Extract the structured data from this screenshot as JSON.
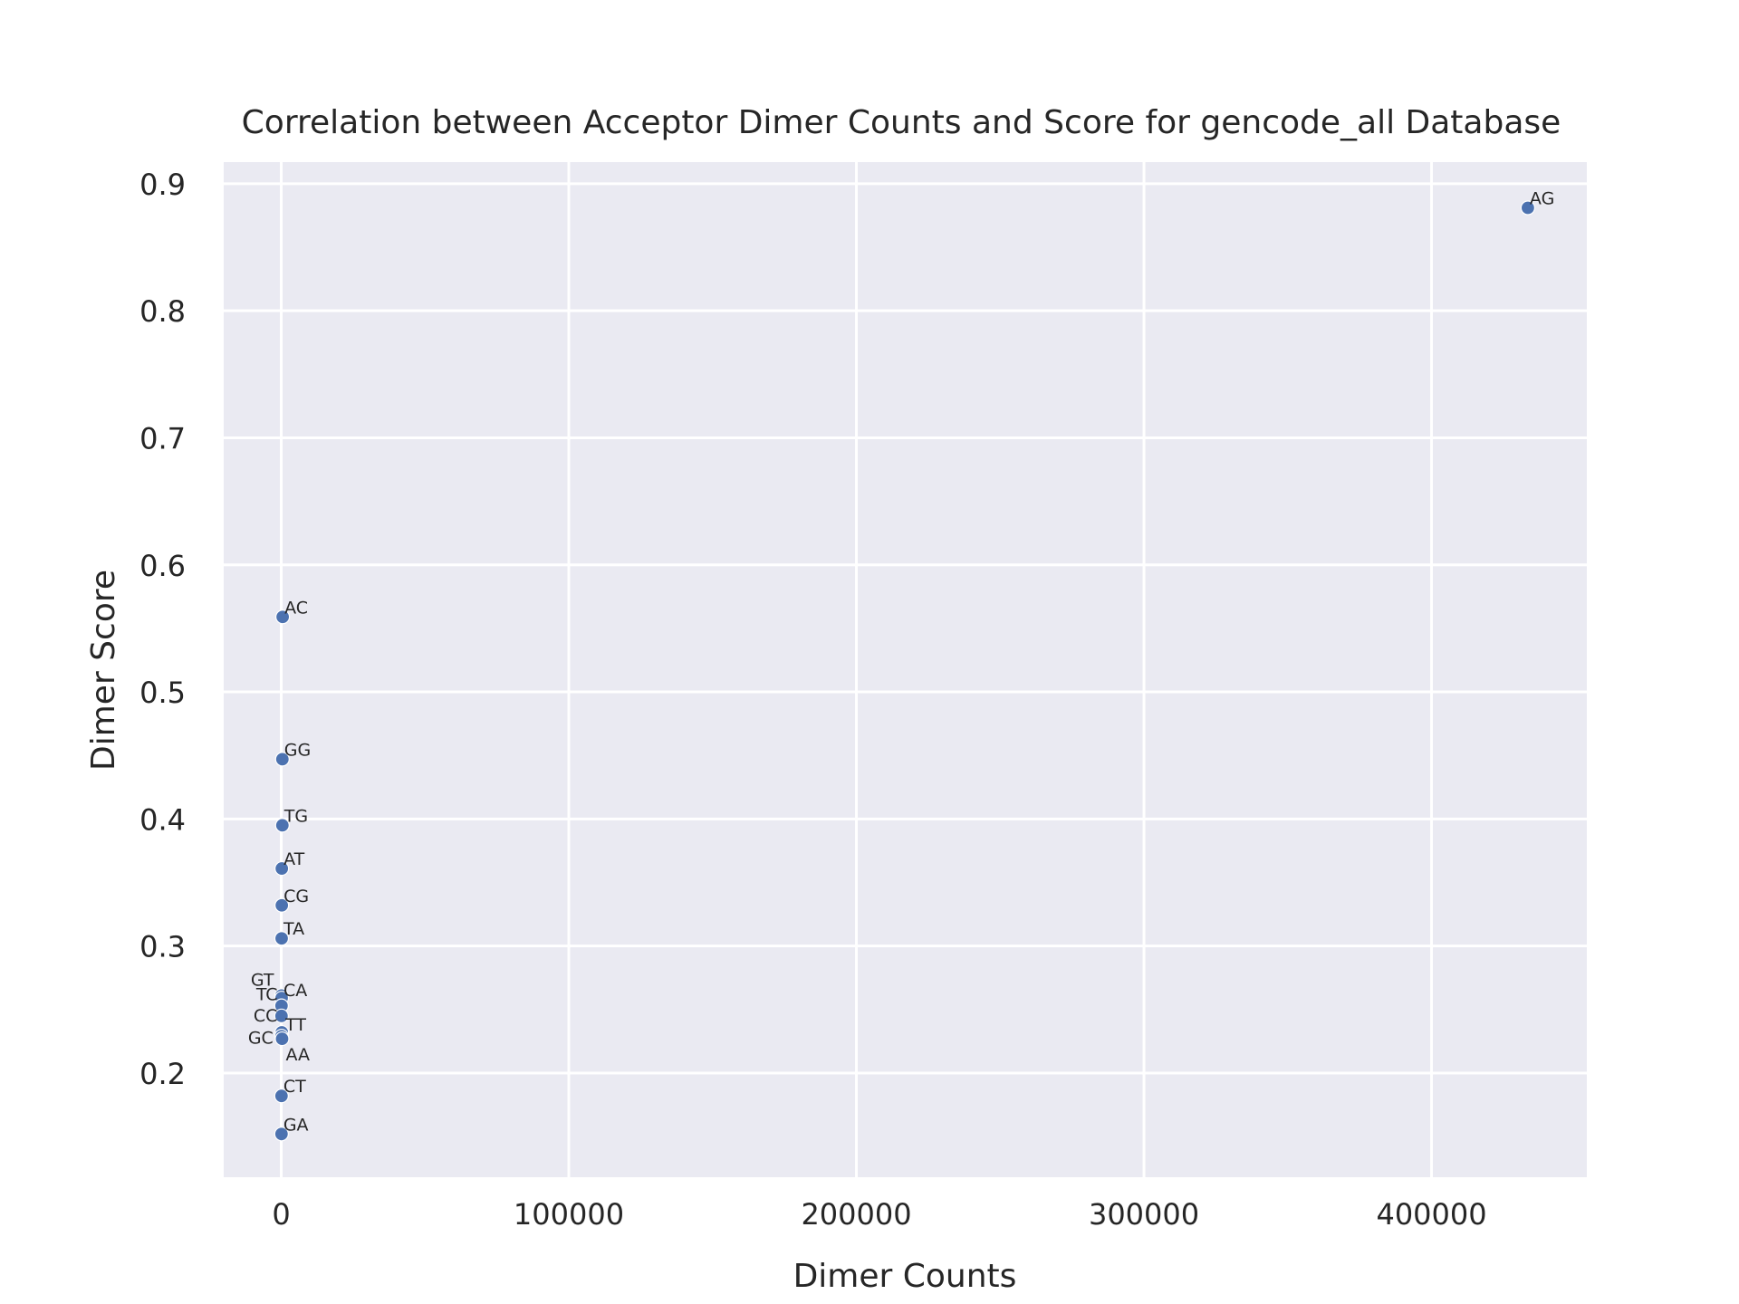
{
  "chart_data": {
    "type": "scatter",
    "title": "Correlation between Acceptor Dimer Counts and Score for gencode_all Database",
    "xlabel": "Dimer Counts",
    "ylabel": "Dimer Score",
    "xlim": [
      -20000,
      454000
    ],
    "ylim": [
      0.118,
      0.917
    ],
    "xticks": [
      0,
      100000,
      200000,
      300000,
      400000
    ],
    "yticks": [
      0.2,
      0.3,
      0.4,
      0.5,
      0.6,
      0.7,
      0.8,
      0.9
    ],
    "grid": true,
    "colors": {
      "point": "#4c72b0",
      "background": "#eaeaf2",
      "grid": "#ffffff"
    },
    "points": [
      {
        "label": "AG",
        "x": 433500,
        "y": 0.881
      },
      {
        "label": "AC",
        "x": 500,
        "y": 0.559
      },
      {
        "label": "GG",
        "x": 400,
        "y": 0.447
      },
      {
        "label": "TG",
        "x": 400,
        "y": 0.395
      },
      {
        "label": "AT",
        "x": 200,
        "y": 0.361
      },
      {
        "label": "CG",
        "x": 200,
        "y": 0.332
      },
      {
        "label": "TA",
        "x": 150,
        "y": 0.306
      },
      {
        "label": "GT",
        "x": 100,
        "y": 0.261
      },
      {
        "label": "CA",
        "x": 150,
        "y": 0.259
      },
      {
        "label": "TC",
        "x": 100,
        "y": 0.253
      },
      {
        "label": "CC",
        "x": 100,
        "y": 0.245
      },
      {
        "label": "TT",
        "x": 200,
        "y": 0.232
      },
      {
        "label": "GC",
        "x": 100,
        "y": 0.229
      },
      {
        "label": "AA",
        "x": 300,
        "y": 0.227
      },
      {
        "label": "CT",
        "x": 100,
        "y": 0.182
      },
      {
        "label": "GA",
        "x": 100,
        "y": 0.152
      }
    ]
  }
}
